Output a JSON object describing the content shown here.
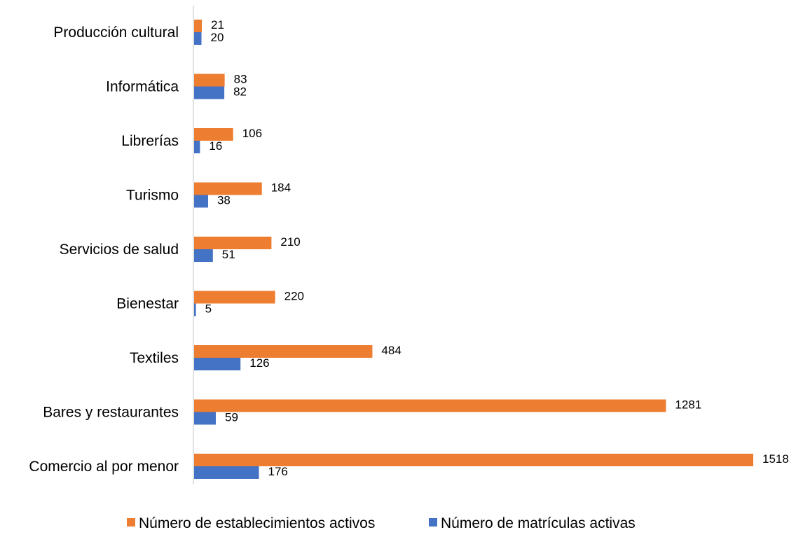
{
  "chart_data": {
    "type": "bar",
    "orientation": "horizontal",
    "title": "",
    "xlabel": "",
    "ylabel": "",
    "categories": [
      "Producción cultural",
      "Informática",
      "Librerías",
      "Turismo",
      "Servicios de salud",
      "Bienestar",
      "Textiles",
      "Bares y restaurantes",
      "Comercio al por menor"
    ],
    "series": [
      {
        "name": "Número de establecimientos activos",
        "color": "#ED7D31",
        "values": [
          21,
          83,
          106,
          184,
          210,
          220,
          484,
          1281,
          1518
        ]
      },
      {
        "name": "Número de matrículas activas",
        "color": "#4472C4",
        "values": [
          20,
          82,
          16,
          38,
          51,
          5,
          126,
          59,
          176
        ]
      }
    ],
    "xlim": [
      0,
      1518
    ],
    "grid": false,
    "data_labels": true,
    "legend_position": "bottom"
  }
}
